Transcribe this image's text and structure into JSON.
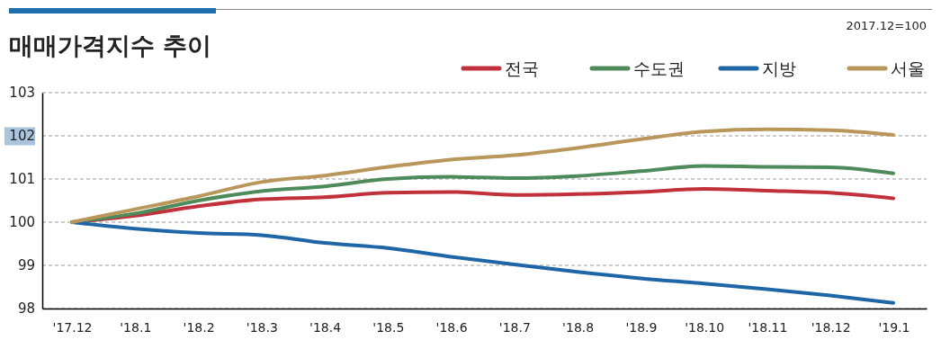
{
  "chart_data": {
    "type": "line",
    "title": "매매가격지수 추이",
    "annotations": [
      "2017.12=100"
    ],
    "categories": [
      "'17.12",
      "'18.1",
      "'18.2",
      "'18.3",
      "'18.4",
      "'18.5",
      "'18.6",
      "'18.7",
      "'18.8",
      "'18.9",
      "'18.10",
      "'18.11",
      "'18.12",
      "'19.1"
    ],
    "series": [
      {
        "name": "전국",
        "color": "#c0313b",
        "values": [
          100,
          100.15,
          100.37,
          100.53,
          100.58,
          100.68,
          100.7,
          100.63,
          100.65,
          100.7,
          100.77,
          100.73,
          100.68,
          100.55
        ]
      },
      {
        "name": "수도권",
        "color": "#4e8a5a",
        "values": [
          100,
          100.2,
          100.5,
          100.72,
          100.83,
          101.0,
          101.05,
          101.02,
          101.07,
          101.18,
          101.3,
          101.28,
          101.27,
          101.13
        ]
      },
      {
        "name": "지방",
        "color": "#1f66a6",
        "values": [
          100,
          99.85,
          99.75,
          99.7,
          99.52,
          99.4,
          99.2,
          99.02,
          98.85,
          98.7,
          98.58,
          98.45,
          98.3,
          98.13
        ]
      },
      {
        "name": "서울",
        "color": "#b9975b",
        "values": [
          100,
          100.3,
          100.6,
          100.93,
          101.08,
          101.28,
          101.45,
          101.55,
          101.72,
          101.92,
          102.1,
          102.15,
          102.13,
          102.02
        ]
      }
    ],
    "ylim": [
      98,
      103
    ],
    "yticks": [
      98,
      99,
      100,
      101,
      102,
      103
    ],
    "grid": "y",
    "legend": "top right",
    "marker": "none",
    "line_style": "solid"
  }
}
